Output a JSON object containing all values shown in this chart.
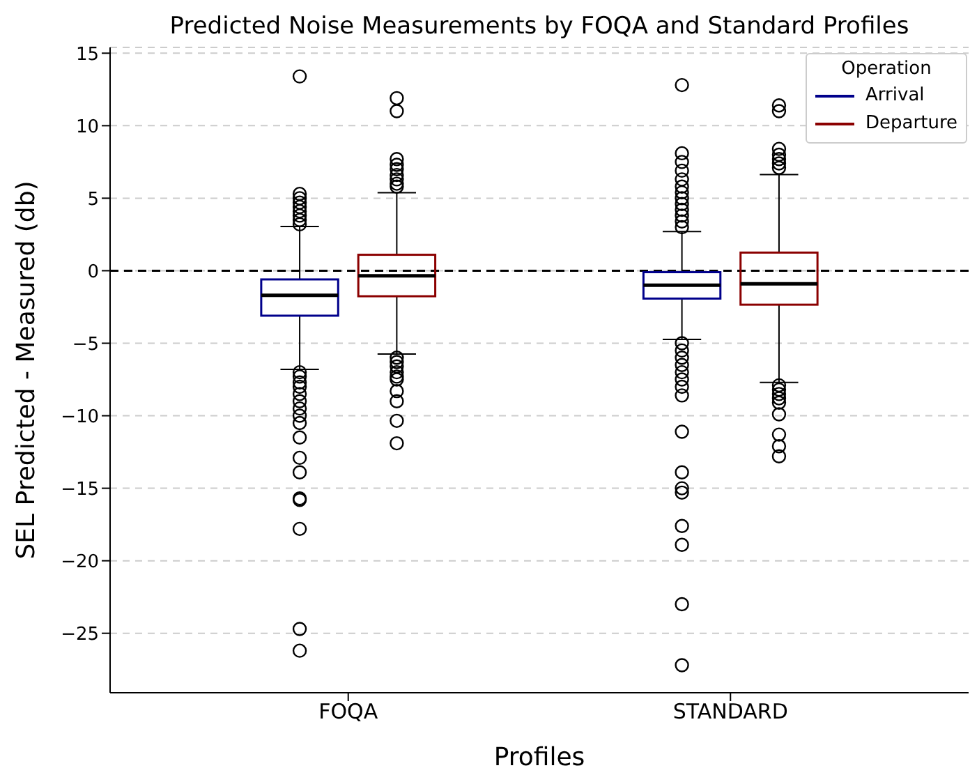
{
  "chart_data": {
    "type": "box",
    "title": "Predicted Noise Measurements by FOQA and Standard Profiles",
    "xlabel": "Profiles",
    "ylabel": "SEL Predicted - Measured (db)",
    "legend_title": "Operation",
    "categories": [
      "FOQA",
      "STANDARD"
    ],
    "series": [
      {
        "name": "Arrival",
        "color": "#00008b",
        "boxes": [
          {
            "low": -6.8,
            "q1": -3.1,
            "median": -1.7,
            "q3": -0.6,
            "high": 3.05,
            "outliers": [
              13.4,
              5.3,
              5.0,
              4.7,
              4.4,
              4.1,
              3.8,
              3.5,
              3.2,
              -7.0,
              -7.3,
              -7.7,
              -8.0,
              -8.5,
              -9.0,
              -9.5,
              -10.0,
              -10.5,
              -11.5,
              -12.9,
              -13.9,
              -15.7,
              -15.8,
              -17.8,
              -24.7,
              -26.2
            ]
          },
          {
            "low": -4.74,
            "q1": -1.92,
            "median": -1.0,
            "q3": -0.1,
            "high": 2.7,
            "outliers": [
              12.8,
              8.1,
              7.5,
              6.9,
              6.3,
              5.8,
              5.4,
              5.0,
              4.6,
              4.2,
              3.8,
              3.4,
              3.0,
              -5.0,
              -5.5,
              -6.0,
              -6.5,
              -7.0,
              -7.5,
              -8.0,
              -8.6,
              -11.1,
              -13.9,
              -15.0,
              -15.3,
              -17.6,
              -18.9,
              -23.0,
              -27.2
            ]
          }
        ]
      },
      {
        "name": "Departure",
        "color": "#8b0000",
        "boxes": [
          {
            "low": -5.74,
            "q1": -1.76,
            "median": -0.35,
            "q3": 1.1,
            "high": 5.38,
            "outliers": [
              11.9,
              11.0,
              7.7,
              7.3,
              7.0,
              6.6,
              6.3,
              6.0,
              5.8,
              -6.0,
              -6.3,
              -6.6,
              -7.0,
              -7.3,
              -7.5,
              -8.3,
              -9.0,
              -10.35,
              -11.9
            ]
          },
          {
            "low": -7.7,
            "q1": -2.34,
            "median": -0.9,
            "q3": 1.25,
            "high": 6.63,
            "outliers": [
              11.4,
              11.0,
              8.4,
              8.0,
              7.7,
              7.4,
              7.1,
              -7.9,
              -8.2,
              -8.5,
              -8.8,
              -9.1,
              -9.9,
              -11.3,
              -12.1,
              -12.8
            ]
          }
        ]
      }
    ],
    "ylim": [
      -29.1,
      15.4
    ],
    "yticks": [
      -25,
      -20,
      -15,
      -10,
      -5,
      0,
      5,
      10,
      15
    ],
    "grid": "y",
    "legend": "top right",
    "ref_lines": [
      {
        "axis": "y",
        "value": 0,
        "color": "#000000",
        "line_style": "dashed"
      }
    ]
  }
}
